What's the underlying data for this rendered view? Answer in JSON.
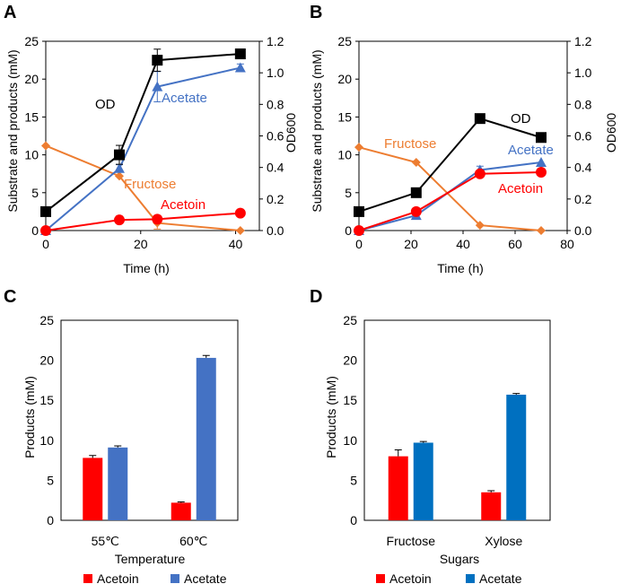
{
  "figure": {
    "panels": [
      "A",
      "B",
      "C",
      "D"
    ]
  },
  "chart_data": [
    {
      "panel": "A",
      "type": "line",
      "xlabel": "Time (h)",
      "ylabel": "Substrate and products (mM)",
      "y2label": "OD600",
      "xlim": [
        0,
        45
      ],
      "xticks": [
        0,
        20,
        40
      ],
      "xtick_labels": [
        "0",
        "20",
        "40"
      ],
      "ylim": [
        0,
        25
      ],
      "yticks": [
        0,
        5,
        10,
        15,
        20,
        25
      ],
      "ytick_labels": [
        "0",
        "5",
        "10",
        "15",
        "20",
        "25"
      ],
      "y2lim": [
        0,
        1.2
      ],
      "y2ticks": [
        0,
        0.2,
        0.4,
        0.6,
        0.8,
        1.0,
        1.2
      ],
      "y2tick_labels": [
        "0.0",
        "0.2",
        "0.4",
        "0.6",
        "0.8",
        "1.0",
        "1.2"
      ],
      "series": [
        {
          "name": "Fructose",
          "label": "Fructose",
          "axis": "left",
          "color": "#ED7D31",
          "marker": "diamond",
          "x": [
            0,
            15.5,
            23.5,
            41
          ],
          "y": [
            11.2,
            7.2,
            1.0,
            0.0
          ],
          "err": [
            0,
            0,
            0.8,
            0
          ]
        },
        {
          "name": "Acetate",
          "label": "Acetate",
          "axis": "left",
          "color": "#4472C4",
          "marker": "triangle",
          "x": [
            0,
            15.5,
            23.5,
            41
          ],
          "y": [
            0.0,
            8.2,
            19.0,
            21.5
          ],
          "err": [
            0,
            0.5,
            2.0,
            0.5
          ]
        },
        {
          "name": "Acetoin",
          "label": "Acetoin",
          "axis": "left",
          "color": "#FF0000",
          "marker": "circle",
          "x": [
            0,
            15.5,
            23.5,
            41
          ],
          "y": [
            0.0,
            1.4,
            1.5,
            2.3
          ],
          "err": [
            0,
            0,
            0,
            0
          ]
        },
        {
          "name": "OD",
          "label": "OD",
          "axis": "right",
          "color": "#000000",
          "marker": "square",
          "x": [
            0,
            15.5,
            23.5,
            41
          ],
          "y": [
            0.12,
            0.48,
            1.08,
            1.12
          ],
          "err": [
            0,
            0.06,
            0.07,
            0
          ]
        }
      ]
    },
    {
      "panel": "B",
      "type": "line",
      "xlabel": "Time (h)",
      "ylabel": "Substrate and products (mM)",
      "y2label": "OD600",
      "xlim": [
        0,
        80
      ],
      "xticks": [
        0,
        20,
        40,
        60,
        80
      ],
      "xtick_labels": [
        "0",
        "20",
        "40",
        "60",
        "80"
      ],
      "ylim": [
        0,
        25
      ],
      "yticks": [
        0,
        5,
        10,
        15,
        20,
        25
      ],
      "ytick_labels": [
        "0",
        "5",
        "10",
        "15",
        "20",
        "25"
      ],
      "y2lim": [
        0,
        1.2
      ],
      "y2ticks": [
        0,
        0.2,
        0.4,
        0.6,
        0.8,
        1.0,
        1.2
      ],
      "y2tick_labels": [
        "0.0",
        "0.2",
        "0.4",
        "0.6",
        "0.8",
        "1.0",
        "1.2"
      ],
      "series": [
        {
          "name": "Fructose",
          "label": "Fructose",
          "axis": "left",
          "color": "#ED7D31",
          "marker": "diamond",
          "x": [
            0,
            22,
            46.5,
            70
          ],
          "y": [
            11.0,
            9.0,
            0.7,
            0.0
          ],
          "err": [
            0,
            0,
            0,
            0
          ]
        },
        {
          "name": "Acetate",
          "label": "Acetate",
          "axis": "left",
          "color": "#4472C4",
          "marker": "triangle",
          "x": [
            0,
            22,
            46.5,
            70
          ],
          "y": [
            0.0,
            2.0,
            8.0,
            9.0
          ],
          "err": [
            0,
            0,
            0.5,
            0
          ]
        },
        {
          "name": "Acetoin",
          "label": "Acetoin",
          "axis": "left",
          "color": "#FF0000",
          "marker": "circle",
          "x": [
            0,
            22,
            46.5,
            70
          ],
          "y": [
            0.0,
            2.5,
            7.5,
            7.7
          ],
          "err": [
            0,
            0,
            0,
            0
          ]
        },
        {
          "name": "OD",
          "label": "OD",
          "axis": "right",
          "color": "#000000",
          "marker": "square",
          "x": [
            0,
            22,
            46.5,
            70
          ],
          "y": [
            0.12,
            0.24,
            0.71,
            0.59
          ],
          "err": [
            0,
            0,
            0,
            0
          ]
        }
      ]
    },
    {
      "panel": "C",
      "type": "bar",
      "xlabel": "Temperature",
      "ylabel": "Products (mM)",
      "categories": [
        "55℃",
        "60℃"
      ],
      "ylim": [
        0,
        25
      ],
      "yticks": [
        0,
        5,
        10,
        15,
        20,
        25
      ],
      "ytick_labels": [
        "0",
        "5",
        "10",
        "15",
        "20",
        "25"
      ],
      "series": [
        {
          "name": "Acetoin",
          "label": "Acetoin",
          "color": "#FF0000",
          "values": [
            7.8,
            2.2
          ],
          "err": [
            0.3,
            0.1
          ]
        },
        {
          "name": "Acetate",
          "label": "Acetate",
          "color": "#4472C4",
          "values": [
            9.1,
            20.3
          ],
          "err": [
            0.2,
            0.3
          ]
        }
      ],
      "legend_position": "bottom"
    },
    {
      "panel": "D",
      "type": "bar",
      "xlabel": "Sugars",
      "ylabel": "Products (mM)",
      "categories": [
        "Fructose",
        "Xylose"
      ],
      "ylim": [
        0,
        25
      ],
      "yticks": [
        0,
        5,
        10,
        15,
        20,
        25
      ],
      "ytick_labels": [
        "0",
        "5",
        "10",
        "15",
        "20",
        "25"
      ],
      "series": [
        {
          "name": "Acetoin",
          "label": "Acetoin",
          "color": "#FF0000",
          "values": [
            8.0,
            3.5
          ],
          "err": [
            0.8,
            0.2
          ]
        },
        {
          "name": "Acetate",
          "label": "Acetate",
          "color": "#0070C0",
          "values": [
            9.7,
            15.7
          ],
          "err": [
            0.15,
            0.15
          ]
        }
      ],
      "legend_position": "bottom"
    }
  ]
}
